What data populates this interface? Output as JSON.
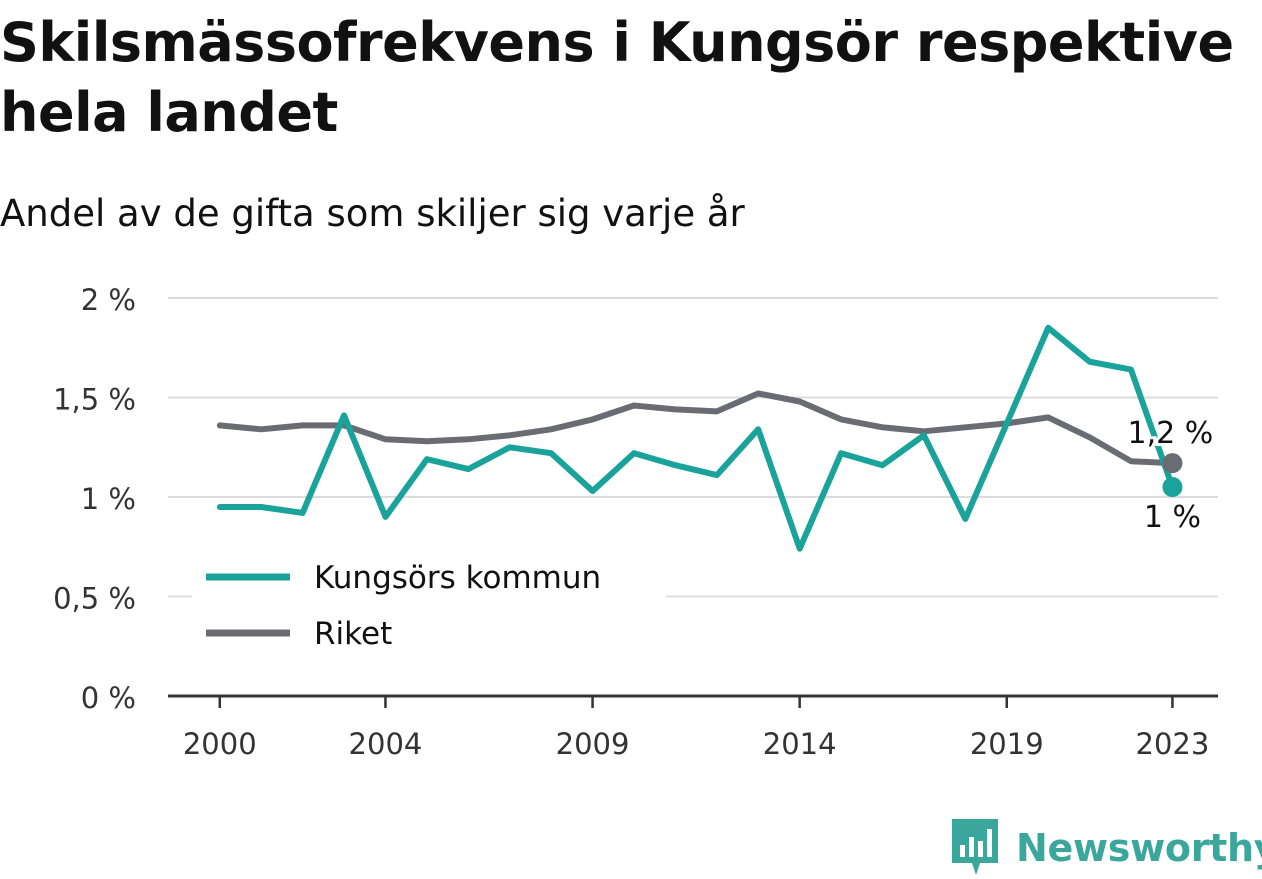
{
  "title": "Skilsmässofrekvens i Kungsör respektive hela landet",
  "subtitle": "Andel av de gifta som skiljer sig varje år",
  "brand": "Newsworthy",
  "chart_data": {
    "type": "line",
    "x": [
      2000,
      2001,
      2002,
      2003,
      2004,
      2005,
      2006,
      2007,
      2008,
      2009,
      2010,
      2011,
      2012,
      2013,
      2014,
      2015,
      2016,
      2017,
      2018,
      2019,
      2020,
      2021,
      2022,
      2023
    ],
    "xticks": [
      2000,
      2004,
      2009,
      2014,
      2019,
      2023
    ],
    "xtick_labels": [
      "2000",
      "2004",
      "2009",
      "2014",
      "2019",
      "2023"
    ],
    "xlim": [
      1998.75,
      2024.1
    ],
    "ylim": [
      0,
      2
    ],
    "yticks": [
      0,
      0.5,
      1,
      1.5,
      2
    ],
    "ytick_labels": [
      "0 %",
      "0,5 %",
      "1 %",
      "1,5 %",
      "2 %"
    ],
    "grid": true,
    "legend_position": "bottom-left",
    "series": [
      {
        "name": "Kungsörs kommun",
        "color": "#1aa39a",
        "values": [
          0.95,
          0.95,
          0.92,
          1.41,
          0.9,
          1.19,
          1.14,
          1.25,
          1.22,
          1.03,
          1.22,
          1.16,
          1.11,
          1.34,
          0.74,
          1.22,
          1.16,
          1.31,
          0.89,
          1.37,
          1.85,
          1.68,
          1.64,
          1.05
        ],
        "end_label": "1 %"
      },
      {
        "name": "Riket",
        "color": "#6b6b73",
        "values": [
          1.36,
          1.34,
          1.36,
          1.36,
          1.29,
          1.28,
          1.29,
          1.31,
          1.34,
          1.39,
          1.46,
          1.44,
          1.43,
          1.52,
          1.48,
          1.39,
          1.35,
          1.33,
          1.35,
          1.37,
          1.4,
          1.3,
          1.18,
          1.17
        ],
        "end_label": "1,2 %"
      }
    ]
  }
}
